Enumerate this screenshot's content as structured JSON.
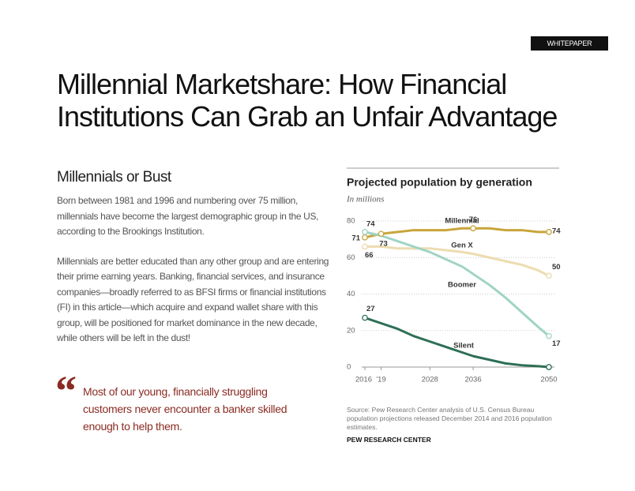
{
  "badge": "WHITEPAPER",
  "title_lines": [
    "Millennial Marketshare: How Financial",
    "Institutions Can Grab an Unfair Advantage"
  ],
  "section_heading": "Millennials or Bust",
  "paragraphs": [
    "Born between 1981 and 1996 and numbering over 75 million, millennials have become the largest demographic group in the US, according to the Brookings Institution.",
    "Millennials are better educated than any other group and are entering their prime earning years. Banking, financial services, and insurance companies—broadly referred to as BFSI firms or financial institutions (FI) in this article—which acquire and expand wallet share with this group, will be positioned for market dominance in the new decade, while others will be left in the dust!"
  ],
  "quote_mark": "“",
  "quote": "Most of our young, financially struggling customers never encounter a banker skilled enough to help them.",
  "chart_data": {
    "type": "line",
    "title": "Projected population by generation",
    "subtitle": "In millions",
    "x": [
      2016,
      2019,
      2022,
      2025,
      2028,
      2031,
      2034,
      2036,
      2039,
      2042,
      2045,
      2048,
      2050
    ],
    "series": [
      {
        "name": "Millennial",
        "color": "#c9a43a",
        "values": [
          71,
          73,
          74,
          75,
          75,
          75,
          76,
          76,
          76,
          75,
          75,
          74,
          74
        ]
      },
      {
        "name": "Gen X",
        "color": "#ecdcb0",
        "values": [
          66,
          66,
          65,
          65,
          65,
          64,
          63,
          62,
          60,
          58,
          56,
          53,
          50
        ]
      },
      {
        "name": "Boomer",
        "color": "#9fd4c4",
        "values": [
          74,
          72,
          69,
          66,
          63,
          59,
          55,
          51,
          45,
          38,
          30,
          22,
          17
        ]
      },
      {
        "name": "Silent",
        "color": "#2e6e55",
        "values": [
          27,
          24,
          21,
          17,
          14,
          11,
          8,
          6,
          4,
          2,
          1,
          0.5,
          0
        ]
      }
    ],
    "xlim": [
      2016,
      2050
    ],
    "xticks": [
      2016,
      {
        "value": 2019,
        "label": "'19"
      },
      2028,
      2036,
      2050
    ],
    "ylim": [
      0,
      80
    ],
    "yticks": [
      0,
      20,
      40,
      60,
      80
    ],
    "grid": true,
    "source": "Source: Pew Research Center analysis of U.S. Census Bureau population projections released December 2014 and 2016 population estimates.",
    "credit": "PEW RESEARCH CENTER"
  }
}
